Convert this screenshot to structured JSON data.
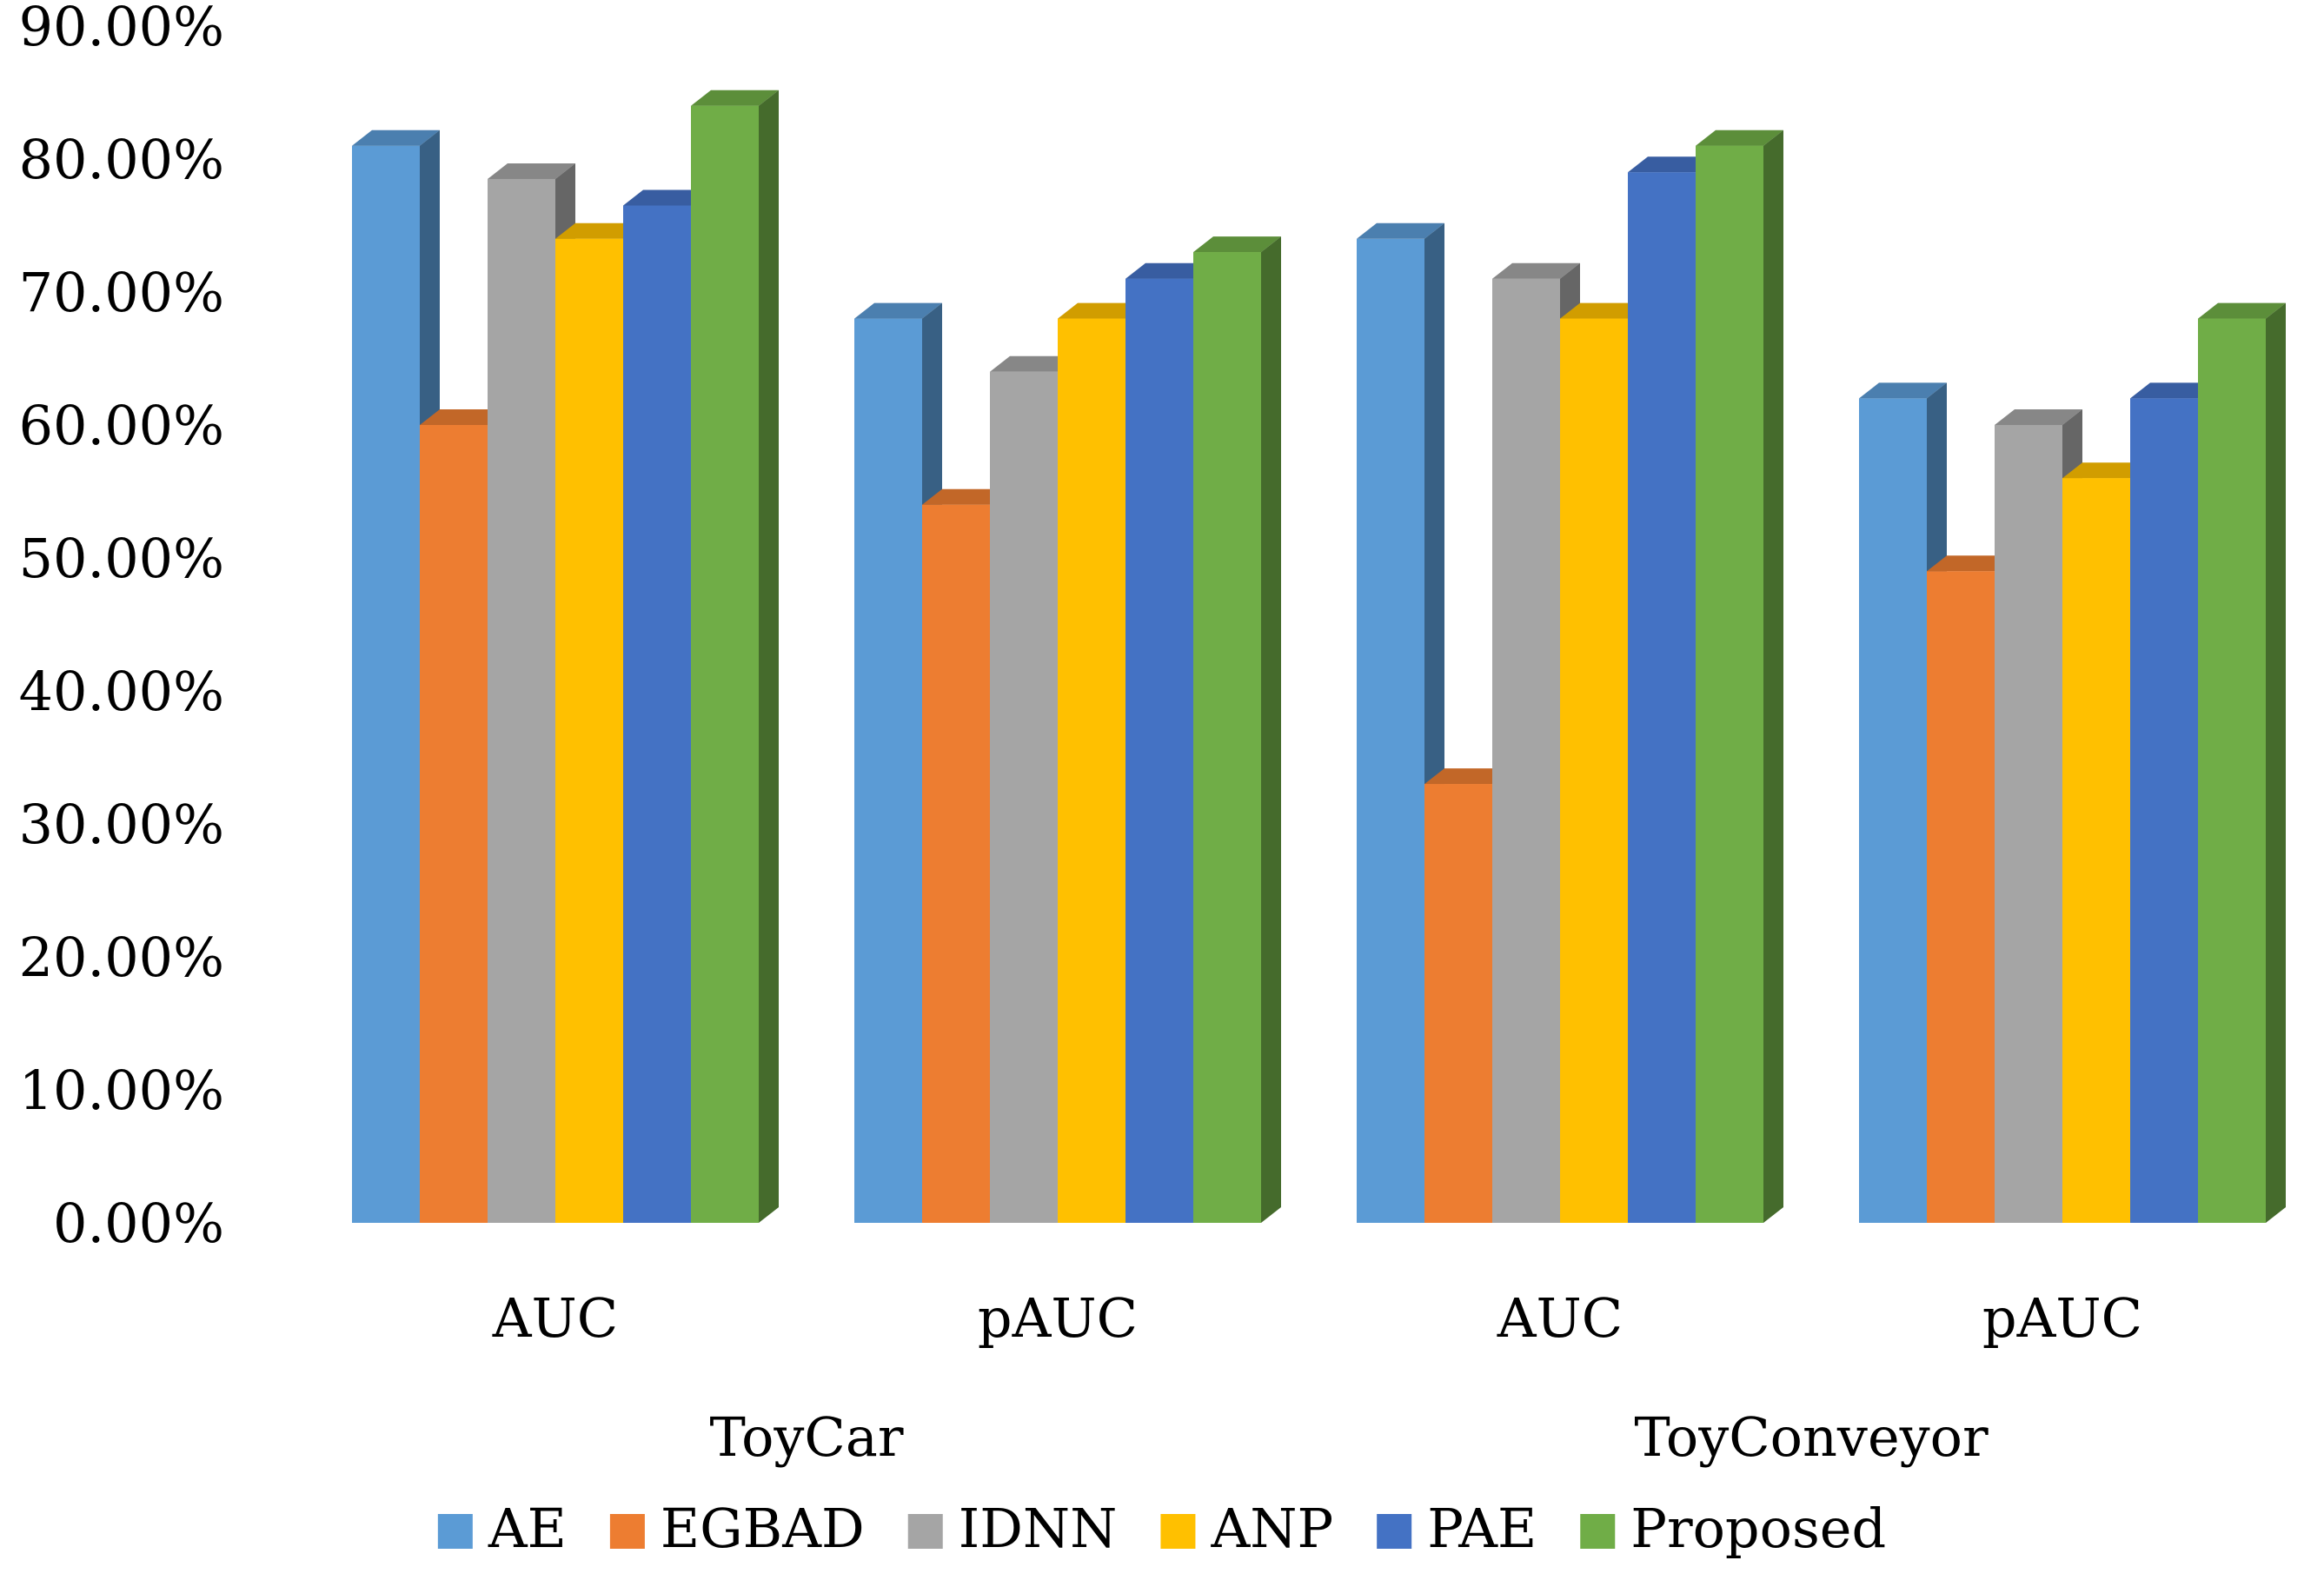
{
  "chart_data": {
    "type": "bar",
    "style": "3d-clustered-column",
    "title": "",
    "xlabel": "",
    "ylabel": "",
    "ylim": [
      0,
      0.9
    ],
    "y_tick_format": "percent-2dp",
    "y_ticks": [
      "0.00%",
      "10.00%",
      "20.00%",
      "30.00%",
      "40.00%",
      "50.00%",
      "60.00%",
      "70.00%",
      "80.00%",
      "90.00%"
    ],
    "grid": false,
    "legend_position": "bottom",
    "groups": [
      {
        "label": "ToyCar",
        "categories": [
          "AUC",
          "pAUC"
        ]
      },
      {
        "label": "ToyConveyor",
        "categories": [
          "AUC",
          "pAUC"
        ]
      }
    ],
    "categories": [
      "AUC",
      "pAUC",
      "AUC",
      "pAUC"
    ],
    "series": [
      {
        "name": "AE",
        "color": "#5B9BD5",
        "values": [
          0.81,
          0.68,
          0.74,
          0.62
        ]
      },
      {
        "name": "EGBAD",
        "color": "#ED7D31",
        "values": [
          0.6,
          0.54,
          0.33,
          0.49
        ]
      },
      {
        "name": "IDNN",
        "color": "#A5A5A5",
        "values": [
          0.785,
          0.64,
          0.71,
          0.6
        ]
      },
      {
        "name": "ANP",
        "color": "#FFC000",
        "values": [
          0.74,
          0.68,
          0.68,
          0.56
        ]
      },
      {
        "name": "PAE",
        "color": "#4472C4",
        "values": [
          0.765,
          0.71,
          0.79,
          0.62
        ]
      },
      {
        "name": "Proposed",
        "color": "#70AD47",
        "values": [
          0.84,
          0.73,
          0.81,
          0.68
        ]
      }
    ]
  }
}
